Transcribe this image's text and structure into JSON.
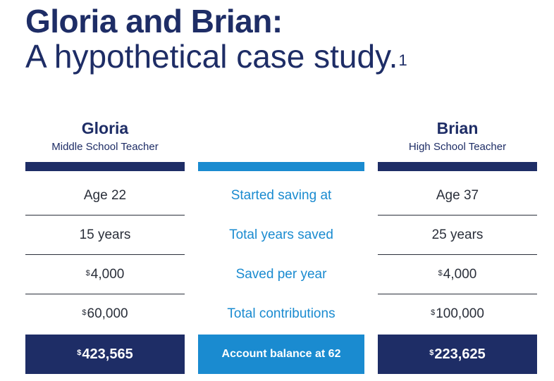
{
  "title": {
    "line1": "Gloria and Brian:",
    "line2": "A hypothetical case study.",
    "footnote_marker": "1"
  },
  "currency_symbol": "$",
  "gloria": {
    "name": "Gloria",
    "role": "Middle School Teacher",
    "started_saving": "Age 22",
    "years_saved": "15 years",
    "saved_per_year": "4,000",
    "total_contributions": "60,000",
    "account_balance": "423,565"
  },
  "labels": {
    "started_saving": "Started saving at",
    "years_saved": "Total years saved",
    "saved_per_year": "Saved per year",
    "total_contributions": "Total contributions",
    "account_balance": "Account balance at 62"
  },
  "brian": {
    "name": "Brian",
    "role": "High School Teacher",
    "started_saving": "Age 37",
    "years_saved": "25 years",
    "saved_per_year": "4,000",
    "total_contributions": "100,000",
    "account_balance": "223,625"
  },
  "colors": {
    "navy": "#1e2d66",
    "blue": "#1a8bd0",
    "text": "#2a2f3a"
  }
}
